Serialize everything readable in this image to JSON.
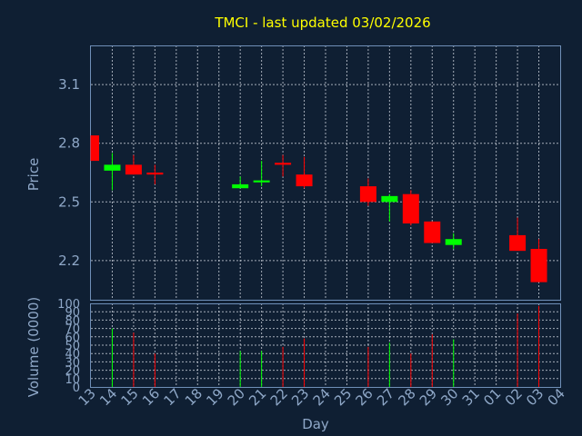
{
  "chart_data": {
    "type": "candlestick",
    "title": "TMCI - last updated 03/02/2026",
    "xlabel": "Day",
    "ylabel": "Price",
    "volume_label": "Volume (0000)",
    "x_ticks": [
      "13",
      "14",
      "15",
      "16",
      "17",
      "18",
      "19",
      "20",
      "21",
      "22",
      "23",
      "24",
      "25",
      "26",
      "27",
      "28",
      "29",
      "30",
      "31",
      "01",
      "02",
      "03",
      "04"
    ],
    "price_ticks": [
      2.2,
      2.5,
      2.8,
      3.1
    ],
    "price_ylim": [
      2.0,
      3.3
    ],
    "volume_ticks": [
      0,
      10,
      20,
      30,
      40,
      50,
      60,
      70,
      80,
      90,
      100
    ],
    "volume_ylim": [
      0,
      100
    ],
    "up_color": "#00ff00",
    "down_color": "#ff0000",
    "candles": [
      {
        "day": "13",
        "open": 2.84,
        "high": 2.84,
        "low": 2.71,
        "close": 2.71,
        "volume": 0
      },
      {
        "day": "14",
        "open": 2.66,
        "high": 2.75,
        "low": 2.56,
        "close": 2.69,
        "volume": 70
      },
      {
        "day": "15",
        "open": 2.69,
        "high": 2.74,
        "low": 2.64,
        "close": 2.64,
        "volume": 65
      },
      {
        "day": "16",
        "open": 2.65,
        "high": 2.69,
        "low": 2.59,
        "close": 2.64,
        "volume": 40
      },
      {
        "day": "20",
        "open": 2.57,
        "high": 2.63,
        "low": 2.57,
        "close": 2.59,
        "volume": 43
      },
      {
        "day": "21",
        "open": 2.6,
        "high": 2.71,
        "low": 2.58,
        "close": 2.61,
        "volume": 43
      },
      {
        "day": "22",
        "open": 2.7,
        "high": 2.74,
        "low": 2.63,
        "close": 2.69,
        "volume": 48
      },
      {
        "day": "23",
        "open": 2.64,
        "high": 2.73,
        "low": 2.57,
        "close": 2.58,
        "volume": 58
      },
      {
        "day": "26",
        "open": 2.58,
        "high": 2.62,
        "low": 2.48,
        "close": 2.5,
        "volume": 48
      },
      {
        "day": "27",
        "open": 2.5,
        "high": 2.54,
        "low": 2.4,
        "close": 2.53,
        "volume": 53
      },
      {
        "day": "28",
        "open": 2.54,
        "high": 2.56,
        "low": 2.38,
        "close": 2.39,
        "volume": 40
      },
      {
        "day": "29",
        "open": 2.4,
        "high": 2.4,
        "low": 2.29,
        "close": 2.29,
        "volume": 63
      },
      {
        "day": "30",
        "open": 2.28,
        "high": 2.34,
        "low": 2.26,
        "close": 2.31,
        "volume": 57
      },
      {
        "day": "02",
        "open": 2.33,
        "high": 2.42,
        "low": 2.25,
        "close": 2.25,
        "volume": 88
      },
      {
        "day": "03",
        "open": 2.26,
        "high": 2.31,
        "low": 2.09,
        "close": 2.09,
        "volume": 97
      }
    ]
  }
}
